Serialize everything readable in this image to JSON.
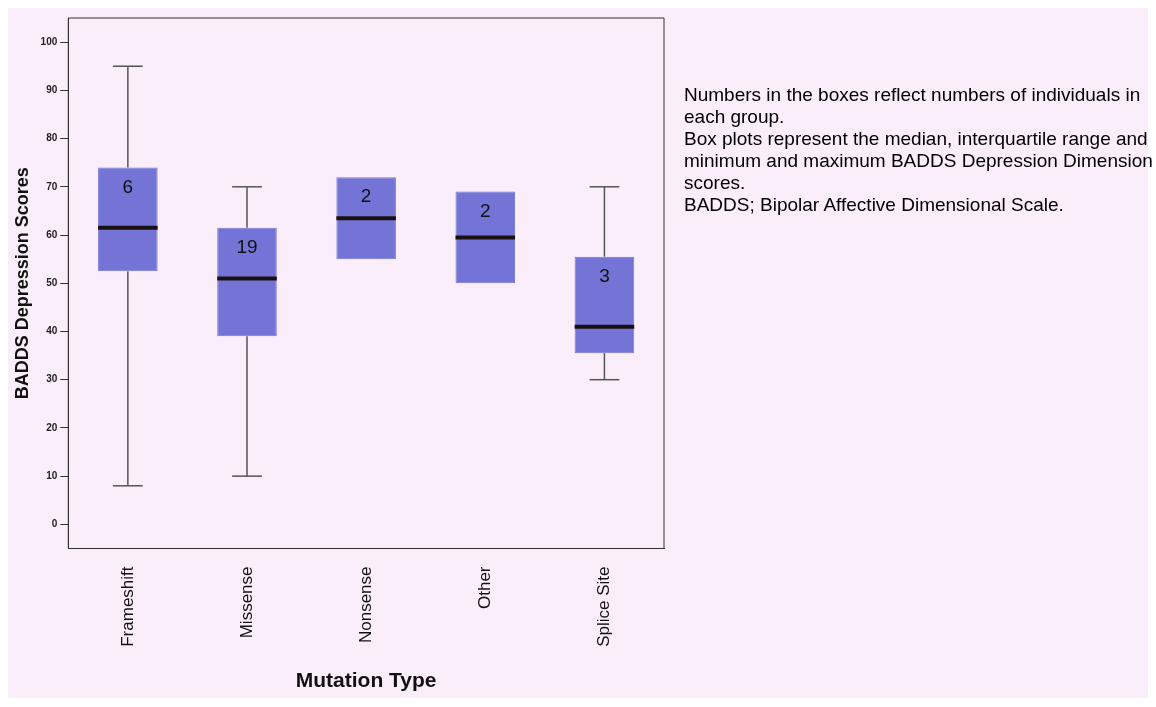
{
  "chart_data": {
    "type": "box",
    "xlabel": "Mutation Type",
    "ylabel": "BADDS Depression Scores",
    "categories": [
      "Frameshift",
      "Missense",
      "Nonsense",
      "Other",
      "Splice Site"
    ],
    "color": "#7474d6",
    "boxes": [
      {
        "low": 8,
        "q1": 52.5,
        "median": 61.5,
        "q3": 74,
        "high": 95
      },
      {
        "low": 10,
        "q1": 39,
        "median": 51,
        "q3": 61.5,
        "high": 70
      },
      {
        "low": 55,
        "q1": 55,
        "median": 63.5,
        "q3": 72,
        "high": 72
      },
      {
        "low": 50,
        "q1": 50,
        "median": 59.5,
        "q3": 69,
        "high": 69
      },
      {
        "low": 30,
        "q1": 35.5,
        "median": 41,
        "q3": 55.5,
        "high": 70
      }
    ],
    "ylim": [
      -5,
      105
    ],
    "yticks": [
      0,
      10,
      20,
      30,
      40,
      50,
      60,
      70,
      80,
      90,
      100
    ],
    "grid": false,
    "annotations": [
      "6",
      "19",
      "2",
      "2",
      "3",
      "Numbers in the boxes reflect numbers of individuals in each group.",
      "Box plots represent the median, interquartile range and minimum and maximum BADDS Depression Dimension scores.",
      "BADDS; Bipolar Affective Dimensional Scale."
    ]
  }
}
